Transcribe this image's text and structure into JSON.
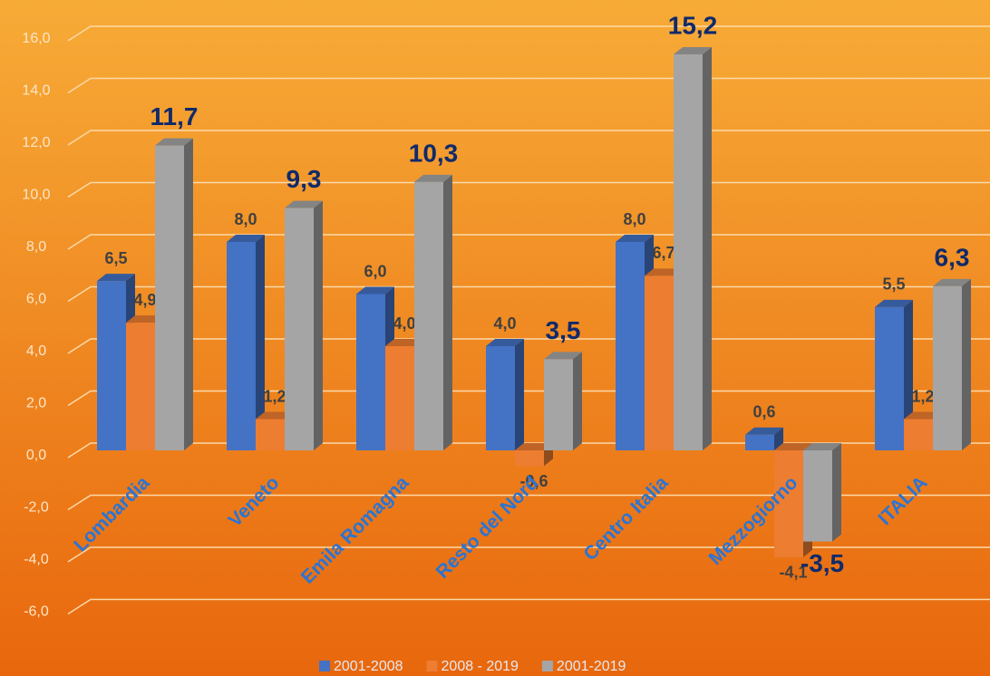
{
  "chart_data": {
    "type": "bar3d",
    "categories": [
      "Lombardia",
      "Veneto",
      "Emila Romagna",
      "Resto del Nord",
      "Centro Italia",
      "Mezzogiorno",
      "ITALIA"
    ],
    "series": [
      {
        "name": "2001-2008",
        "color": "#4472c4",
        "values": [
          6.5,
          8.0,
          6.0,
          4.0,
          8.0,
          0.6,
          5.5
        ],
        "value_labels": [
          "6,5",
          "8,0",
          "6,0",
          "4,0",
          "8,0",
          "0,6",
          "5,5"
        ]
      },
      {
        "name": "2008 - 2019",
        "color": "#ed7d31",
        "values": [
          4.9,
          1.2,
          4.0,
          -0.6,
          6.7,
          -4.1,
          1.2
        ],
        "value_labels": [
          "4,9",
          "1,2",
          "4,0",
          "-0,6",
          "6,7",
          "-4,1",
          "1,2"
        ]
      },
      {
        "name": "2001-2019",
        "color": "#a5a5a5",
        "values": [
          11.7,
          9.3,
          10.3,
          3.5,
          15.2,
          -3.5,
          6.3
        ],
        "value_labels": [
          "11,7",
          "9,3",
          "10,3",
          "3,5",
          "15,2",
          "-3,5",
          "6,3"
        ]
      }
    ],
    "ylim": [
      -6,
      16
    ],
    "yticks": [
      {
        "value": -6,
        "label": "-6,0"
      },
      {
        "value": -4,
        "label": "-4,0"
      },
      {
        "value": -2,
        "label": "-2,0"
      },
      {
        "value": 0,
        "label": "0,0"
      },
      {
        "value": 2,
        "label": "2,0"
      },
      {
        "value": 4,
        "label": "4,0"
      },
      {
        "value": 6,
        "label": "6,0"
      },
      {
        "value": 8,
        "label": "8,0"
      },
      {
        "value": 10,
        "label": "10,0"
      },
      {
        "value": 12,
        "label": "12,0"
      },
      {
        "value": 14,
        "label": "14,0"
      },
      {
        "value": 16,
        "label": "16,0"
      }
    ],
    "grid": true
  }
}
